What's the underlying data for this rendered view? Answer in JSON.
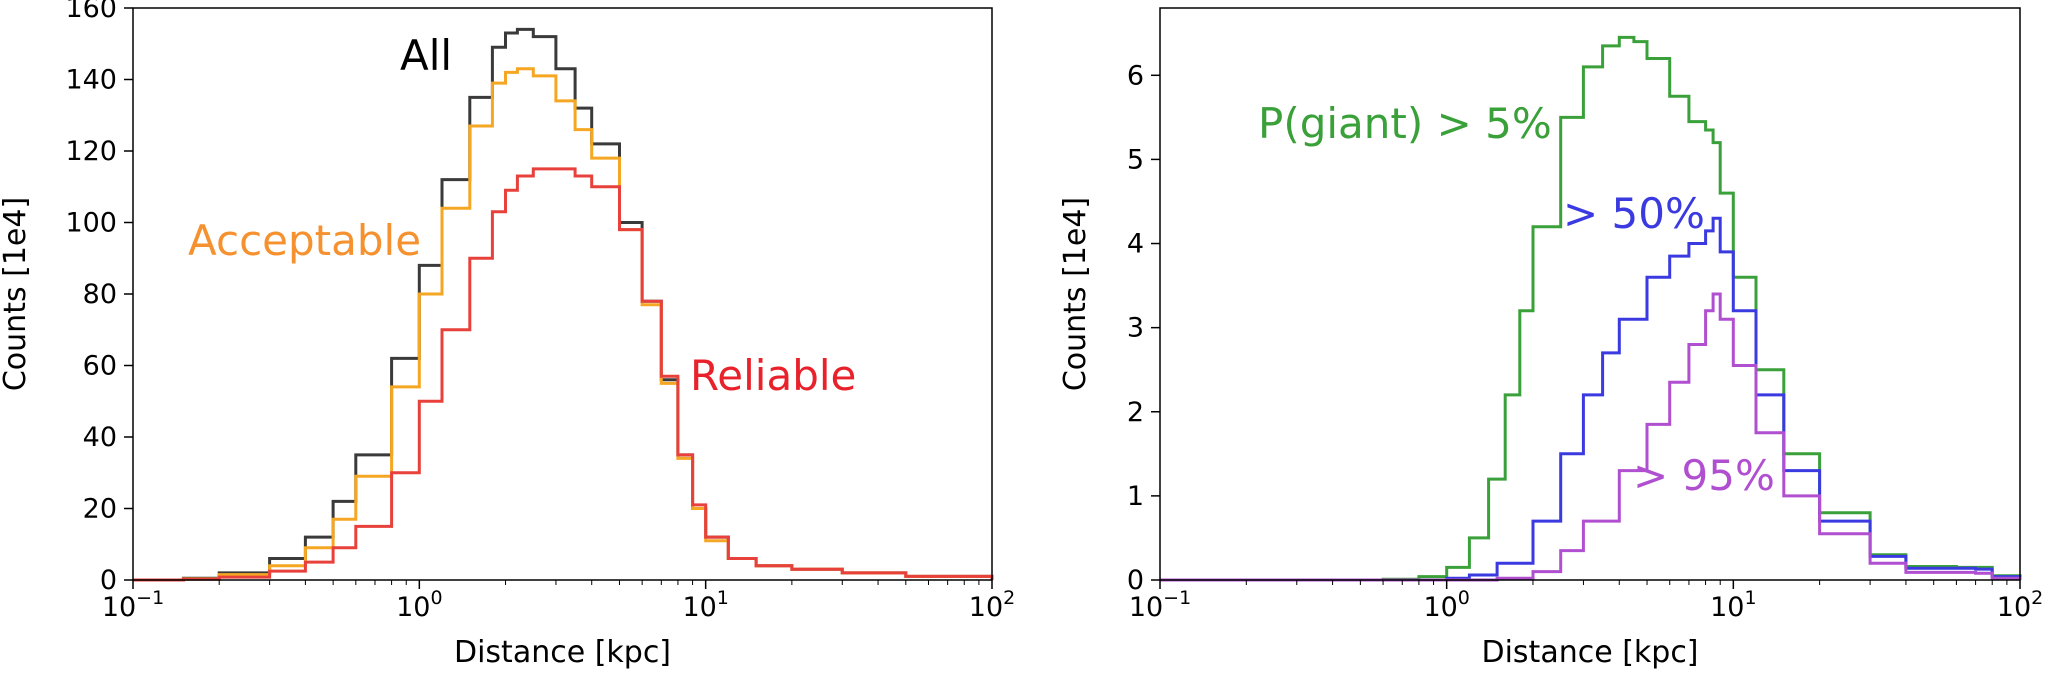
{
  "chart_data": [
    {
      "type": "line",
      "xscale": "log",
      "xlabel": "Distance [kpc]",
      "ylabel": "Counts [1e4]",
      "xlim": [
        0.1,
        100
      ],
      "ylim": [
        0,
        160
      ],
      "xticks": [
        {
          "value": 0.1,
          "base": "10",
          "exp": "−1"
        },
        {
          "value": 1,
          "base": "10",
          "exp": "0"
        },
        {
          "value": 10,
          "base": "10",
          "exp": "1"
        },
        {
          "value": 100,
          "base": "10",
          "exp": "2"
        }
      ],
      "yticks": [
        "0",
        "20",
        "40",
        "60",
        "80",
        "100",
        "120",
        "140",
        "160"
      ],
      "series": [
        {
          "name": "All",
          "color": "#3a3a3a",
          "x": [
            0.1,
            0.15,
            0.2,
            0.3,
            0.4,
            0.5,
            0.6,
            0.8,
            1.0,
            1.2,
            1.5,
            1.8,
            2.0,
            2.2,
            2.5,
            3.0,
            3.5,
            4.0,
            5.0,
            6.0,
            7.0,
            8.0,
            9.0,
            10,
            12,
            15,
            20,
            30,
            50,
            100
          ],
          "y": [
            0,
            0.5,
            2,
            6,
            12,
            22,
            35,
            62,
            88,
            112,
            135,
            149,
            153,
            154,
            152,
            143,
            132,
            122,
            100,
            78,
            56,
            35,
            20,
            12,
            6,
            4,
            3,
            2,
            1,
            0
          ]
        },
        {
          "name": "Acceptable",
          "color": "#f5a623",
          "x": [
            0.1,
            0.15,
            0.2,
            0.3,
            0.4,
            0.5,
            0.6,
            0.8,
            1.0,
            1.2,
            1.5,
            1.8,
            2.0,
            2.2,
            2.5,
            3.0,
            3.5,
            4.0,
            5.0,
            6.0,
            7.0,
            8.0,
            9.0,
            10,
            12,
            15,
            20,
            30,
            50,
            100
          ],
          "y": [
            0,
            0.3,
            1.5,
            4,
            9,
            17,
            29,
            54,
            80,
            104,
            127,
            139,
            142,
            143,
            141,
            134,
            126,
            118,
            98,
            77,
            55,
            34,
            20,
            11,
            6,
            4,
            3,
            2,
            1,
            0
          ]
        },
        {
          "name": "Reliable",
          "color": "#e8413c",
          "x": [
            0.1,
            0.15,
            0.2,
            0.3,
            0.4,
            0.5,
            0.6,
            0.8,
            1.0,
            1.2,
            1.5,
            1.8,
            2.0,
            2.2,
            2.5,
            3.0,
            3.5,
            4.0,
            5.0,
            6.0,
            7.0,
            8.0,
            9.0,
            10,
            12,
            15,
            20,
            30,
            50,
            100
          ],
          "y": [
            0,
            0.2,
            0.8,
            2.5,
            5,
            9,
            15,
            30,
            50,
            70,
            90,
            103,
            109,
            113,
            115,
            115,
            113,
            110,
            98,
            78,
            57,
            35,
            21,
            12,
            6,
            4,
            3,
            2,
            1,
            0
          ]
        }
      ],
      "annotations": [
        {
          "text": "All",
          "color": "#000000"
        },
        {
          "text": "Acceptable",
          "color": "#f5922f"
        },
        {
          "text": "Reliable",
          "color": "#e8212b"
        }
      ]
    },
    {
      "type": "line",
      "xscale": "log",
      "xlabel": "Distance [kpc]",
      "ylabel": "Counts [1e4]",
      "xlim": [
        0.1,
        100
      ],
      "ylim": [
        0,
        6.8
      ],
      "xticks": [
        {
          "value": 0.1,
          "base": "10",
          "exp": "−1"
        },
        {
          "value": 1,
          "base": "10",
          "exp": "0"
        },
        {
          "value": 10,
          "base": "10",
          "exp": "1"
        },
        {
          "value": 100,
          "base": "10",
          "exp": "2"
        }
      ],
      "yticks": [
        "0",
        "1",
        "2",
        "3",
        "4",
        "5",
        "6"
      ],
      "series": [
        {
          "name": "P(giant) > 5%",
          "color": "#3aa03a",
          "x": [
            0.1,
            0.4,
            0.6,
            0.8,
            1.0,
            1.2,
            1.4,
            1.6,
            1.8,
            2.0,
            2.5,
            3.0,
            3.5,
            4.0,
            4.5,
            5.0,
            6.0,
            7.0,
            8.0,
            8.5,
            9.0,
            10,
            12,
            15,
            20,
            30,
            40,
            60,
            70,
            80,
            100
          ],
          "y": [
            0,
            0,
            0.01,
            0.04,
            0.15,
            0.5,
            1.2,
            2.2,
            3.2,
            4.2,
            5.5,
            6.1,
            6.35,
            6.45,
            6.4,
            6.2,
            5.75,
            5.45,
            5.35,
            5.2,
            4.6,
            3.6,
            2.5,
            1.5,
            0.8,
            0.3,
            0.16,
            0.15,
            0.15,
            0.05,
            0
          ]
        },
        {
          "name": "> 50%",
          "color": "#3a3ae0",
          "x": [
            0.1,
            0.8,
            1.0,
            1.2,
            1.5,
            2.0,
            2.5,
            3.0,
            3.5,
            4.0,
            5.0,
            6.0,
            7.0,
            8.0,
            8.5,
            9.0,
            10,
            12,
            15,
            20,
            30,
            40,
            60,
            70,
            80,
            100
          ],
          "y": [
            0,
            0,
            0.02,
            0.06,
            0.2,
            0.7,
            1.5,
            2.2,
            2.7,
            3.1,
            3.6,
            3.85,
            4.0,
            4.15,
            4.3,
            3.9,
            3.2,
            2.2,
            1.3,
            0.7,
            0.28,
            0.14,
            0.14,
            0.13,
            0.04,
            0
          ]
        },
        {
          "name": "> 95%",
          "color": "#b04fd0",
          "x": [
            0.1,
            1.0,
            1.5,
            2.0,
            2.5,
            3.0,
            4.0,
            5.0,
            6.0,
            7.0,
            8.0,
            8.5,
            9.0,
            10,
            12,
            15,
            20,
            30,
            40,
            60,
            70,
            80,
            100
          ],
          "y": [
            0,
            0,
            0.02,
            0.1,
            0.35,
            0.7,
            1.3,
            1.85,
            2.35,
            2.8,
            3.2,
            3.4,
            3.1,
            2.55,
            1.75,
            1.0,
            0.55,
            0.2,
            0.09,
            0.09,
            0.08,
            0.02,
            0
          ]
        }
      ],
      "annotations": [
        {
          "text": "P(giant) > 5%",
          "color": "#3aa03a"
        },
        {
          "text": "> 50%",
          "color": "#3a3ae0"
        },
        {
          "text": "> 95%",
          "color": "#b04fd0"
        }
      ]
    }
  ]
}
